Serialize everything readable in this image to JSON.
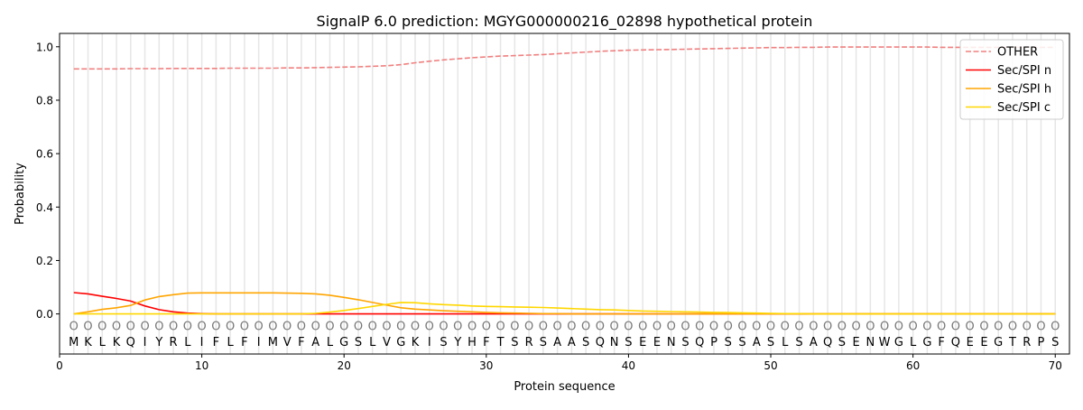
{
  "chart_data": {
    "type": "line",
    "title": "SignalP 6.0 prediction: MGYG000000216_02898 hypothetical protein",
    "xlabel": "Protein sequence",
    "ylabel": "Probability",
    "xlim": [
      0,
      71
    ],
    "ylim": [
      -0.15,
      1.05
    ],
    "xticks": [
      0,
      10,
      20,
      30,
      40,
      50,
      60,
      70
    ],
    "yticks": [
      0.0,
      0.2,
      0.4,
      0.6,
      0.8,
      1.0
    ],
    "ytick_labels": [
      "0.0",
      "0.2",
      "0.4",
      "0.6",
      "0.8",
      "1.0"
    ],
    "grid": "vertical per residue",
    "legend_position": "top-right",
    "sequence": [
      "M",
      "K",
      "L",
      "K",
      "Q",
      "I",
      "Y",
      "R",
      "L",
      "I",
      "F",
      "L",
      "F",
      "I",
      "M",
      "V",
      "F",
      "A",
      "L",
      "G",
      "S",
      "L",
      "V",
      "G",
      "K",
      "I",
      "S",
      "Y",
      "H",
      "F",
      "T",
      "S",
      "R",
      "S",
      "A",
      "A",
      "S",
      "Q",
      "N",
      "S",
      "E",
      "E",
      "N",
      "S",
      "Q",
      "P",
      "S",
      "S",
      "A",
      "S",
      "L",
      "S",
      "A",
      "Q",
      "S",
      "E",
      "N",
      "W",
      "G",
      "L",
      "G",
      "F",
      "Q",
      "E",
      "E",
      "G",
      "T",
      "R",
      "P",
      "S"
    ],
    "region_label": "O",
    "series": [
      {
        "name": "OTHER",
        "color": "#f08080",
        "dash": true,
        "values": [
          0.917,
          0.917,
          0.917,
          0.917,
          0.918,
          0.918,
          0.918,
          0.919,
          0.919,
          0.919,
          0.919,
          0.92,
          0.92,
          0.92,
          0.92,
          0.921,
          0.921,
          0.922,
          0.923,
          0.924,
          0.925,
          0.927,
          0.929,
          0.933,
          0.94,
          0.946,
          0.951,
          0.955,
          0.959,
          0.962,
          0.965,
          0.967,
          0.969,
          0.971,
          0.974,
          0.977,
          0.98,
          0.983,
          0.985,
          0.987,
          0.988,
          0.989,
          0.99,
          0.991,
          0.992,
          0.993,
          0.994,
          0.995,
          0.996,
          0.997,
          0.997,
          0.998,
          0.998,
          0.999,
          0.999,
          0.999,
          0.999,
          0.999,
          0.999,
          0.999,
          0.999,
          0.998,
          0.998,
          0.998,
          0.998,
          0.998,
          0.998,
          0.998,
          0.998,
          0.998
        ]
      },
      {
        "name": "Sec/SPI n",
        "color": "#ff0000",
        "dash": false,
        "values": [
          0.08,
          0.075,
          0.066,
          0.058,
          0.048,
          0.03,
          0.016,
          0.008,
          0.003,
          0.001,
          0,
          0,
          0,
          0,
          0,
          0,
          0,
          0,
          0,
          0,
          0,
          0,
          0,
          0,
          0,
          0,
          0,
          0,
          0,
          0,
          0,
          0,
          0,
          0,
          0,
          0,
          0,
          0,
          0,
          0,
          0,
          0,
          0,
          0,
          0,
          0,
          0,
          0,
          0,
          0,
          0,
          0,
          0,
          0,
          0,
          0,
          0,
          0,
          0,
          0,
          0,
          0,
          0,
          0,
          0,
          0,
          0,
          0,
          0,
          0
        ]
      },
      {
        "name": "Sec/SPI h",
        "color": "#ffa500",
        "dash": false,
        "values": [
          0.0,
          0.008,
          0.017,
          0.023,
          0.032,
          0.052,
          0.065,
          0.072,
          0.078,
          0.079,
          0.079,
          0.079,
          0.079,
          0.079,
          0.079,
          0.078,
          0.077,
          0.075,
          0.07,
          0.062,
          0.053,
          0.043,
          0.033,
          0.023,
          0.018,
          0.015,
          0.012,
          0.01,
          0.008,
          0.006,
          0.004,
          0.003,
          0.002,
          0.001,
          0.001,
          0,
          0,
          0,
          0,
          0,
          0,
          0,
          0,
          0,
          0,
          0,
          0,
          0,
          0,
          0,
          0,
          0,
          0,
          0,
          0,
          0,
          0,
          0,
          0,
          0,
          0,
          0,
          0,
          0,
          0,
          0,
          0,
          0,
          0,
          0
        ]
      },
      {
        "name": "Sec/SPI c",
        "color": "#ffd700",
        "dash": false,
        "values": [
          0,
          0,
          0,
          0,
          0,
          0,
          0,
          0,
          0,
          0,
          0,
          0,
          0,
          0,
          0,
          0,
          0,
          0.002,
          0.007,
          0.013,
          0.02,
          0.028,
          0.036,
          0.043,
          0.042,
          0.038,
          0.035,
          0.033,
          0.03,
          0.028,
          0.027,
          0.026,
          0.025,
          0.024,
          0.022,
          0.02,
          0.018,
          0.016,
          0.015,
          0.013,
          0.011,
          0.01,
          0.009,
          0.008,
          0.007,
          0.006,
          0.005,
          0.004,
          0.003,
          0.002,
          0.001,
          0.001,
          0,
          0,
          0,
          0,
          0,
          0,
          0,
          0,
          0,
          0,
          0,
          0,
          0,
          0,
          0,
          0,
          0,
          0
        ]
      }
    ]
  }
}
